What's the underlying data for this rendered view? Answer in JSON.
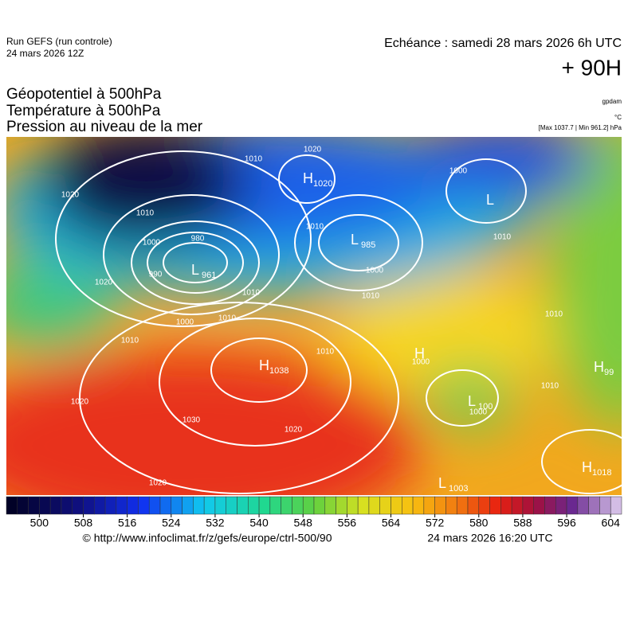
{
  "header": {
    "run": "Run GEFS (run controle)",
    "date": "24 mars 2026 12Z",
    "echeance": "Echéance : samedi 28 mars 2026 6h UTC",
    "lead": "+ 90H",
    "fields": [
      "Géopotentiel à 500hPa",
      "Température à 500hPa",
      "Pression au niveau de la mer"
    ],
    "units": [
      "gpdam",
      "°C"
    ],
    "range": "[Max 1037.7 | Min 961.2] hPa"
  },
  "colorbar": {
    "range": [
      494,
      606
    ],
    "ticks": [
      500,
      508,
      516,
      524,
      532,
      540,
      548,
      556,
      564,
      572,
      580,
      588,
      596,
      604
    ]
  },
  "map": {
    "centers": [
      {
        "letter": "L",
        "value": 961
      },
      {
        "letter": "H",
        "value": 1020
      },
      {
        "letter": "L",
        "value": 985
      },
      {
        "letter": "H",
        "value": 1038
      },
      {
        "letter": "L"
      },
      {
        "letter": "H"
      },
      {
        "letter": "L",
        "value": 1003
      },
      {
        "letter": "H",
        "value": 1018
      },
      {
        "letter": "L",
        "value": 100
      },
      {
        "letter": "H",
        "value": 99
      }
    ],
    "isobar_labels": [
      1020,
      1010,
      1010,
      1020,
      1000,
      980,
      990,
      1020,
      1010,
      1000,
      1010,
      1010,
      1000,
      1000,
      1010,
      1020,
      1030,
      1020,
      1020,
      1010,
      1010,
      1000,
      1010,
      1000,
      1010,
      1010
    ]
  },
  "footer": {
    "url": "© http://www.infoclimat.fr/z/gefs/europe/ctrl-500/90",
    "time": "24 mars 2026 16:20 UTC"
  }
}
